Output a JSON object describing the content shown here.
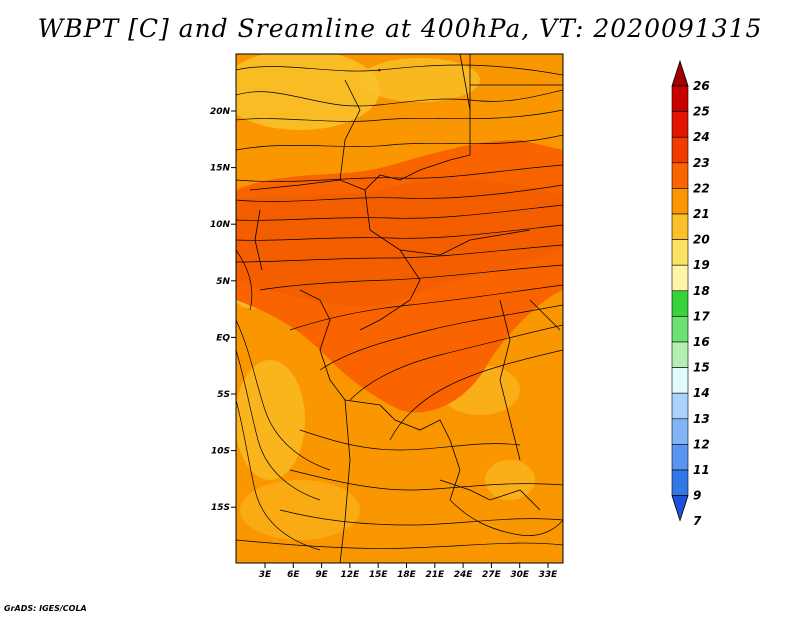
{
  "title": "WBPT [C] and Sreamline at 400hPa, VT: 2020091315",
  "credit": "GrADS: IGES/COLA",
  "map": {
    "lat_labels": [
      "20N",
      "15N",
      "10N",
      "5N",
      "EQ",
      "5S",
      "10S",
      "15S"
    ],
    "lon_labels": [
      "3E",
      "6E",
      "9E",
      "12E",
      "15E",
      "18E",
      "21E",
      "24E",
      "27E",
      "30E",
      "33E"
    ]
  },
  "colorbar": {
    "levels": [
      "26",
      "25",
      "24",
      "23",
      "22",
      "21",
      "20",
      "19",
      "18",
      "17",
      "16",
      "15",
      "14",
      "13",
      "12",
      "11",
      "9",
      "7"
    ],
    "colors": [
      "#a50000",
      "#c80000",
      "#e11400",
      "#f03c00",
      "#fa6400",
      "#fa9600",
      "#fac028",
      "#fae164",
      "#fff5aa",
      "#37d23c",
      "#6ee173",
      "#b4f0b4",
      "#e1fafa",
      "#aad2fa",
      "#82b4f5",
      "#5a96f0",
      "#3278e6",
      "#1e50dc"
    ]
  }
}
